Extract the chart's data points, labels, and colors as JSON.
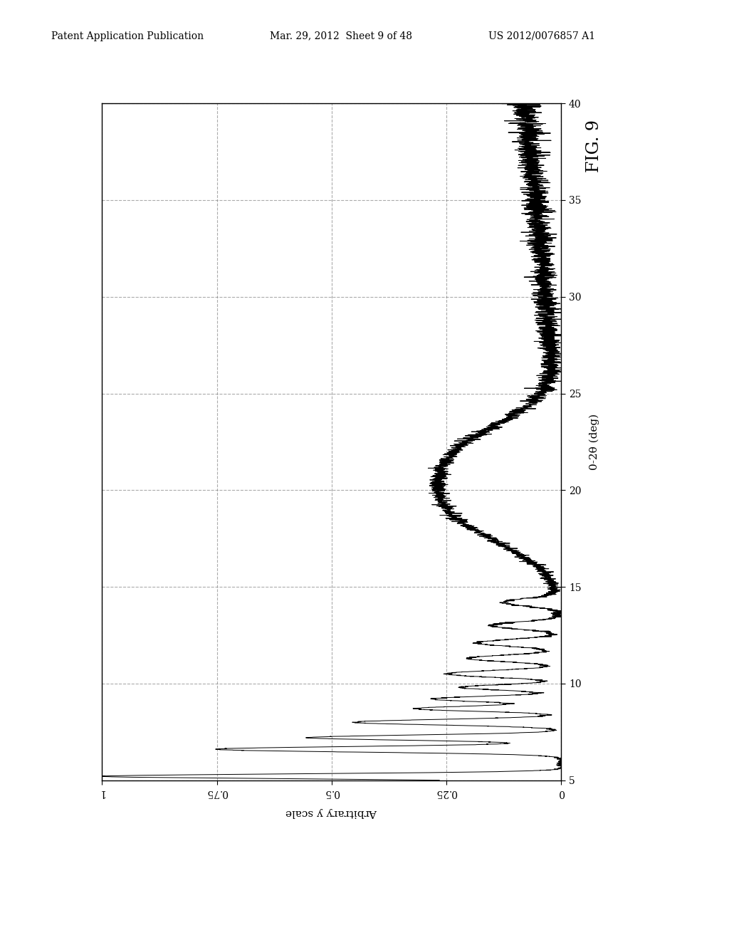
{
  "header_left": "Patent Application Publication",
  "header_middle": "Mar. 29, 2012  Sheet 9 of 48",
  "header_right": "US 2012/0076857 A1",
  "fig_label": "FIG. 9",
  "xlabel_right": "0-2θ (deg)",
  "ylabel_bottom": "Arbitrary y scale",
  "theta_min": 5,
  "theta_max": 40,
  "intensity_min": 0,
  "intensity_max": 1.0,
  "theta_ticks": [
    5,
    10,
    15,
    20,
    25,
    30,
    35,
    40
  ],
  "intensity_ticks": [
    0,
    0.25,
    0.5,
    0.75,
    1
  ],
  "background_color": "#ffffff",
  "plot_bg_color": "#ffffff",
  "line_color": "#000000",
  "grid_color": "#888888",
  "header_fontsize": 10,
  "fig_label_fontsize": 17,
  "axis_label_fontsize": 11,
  "tick_fontsize": 10,
  "seed": 42
}
